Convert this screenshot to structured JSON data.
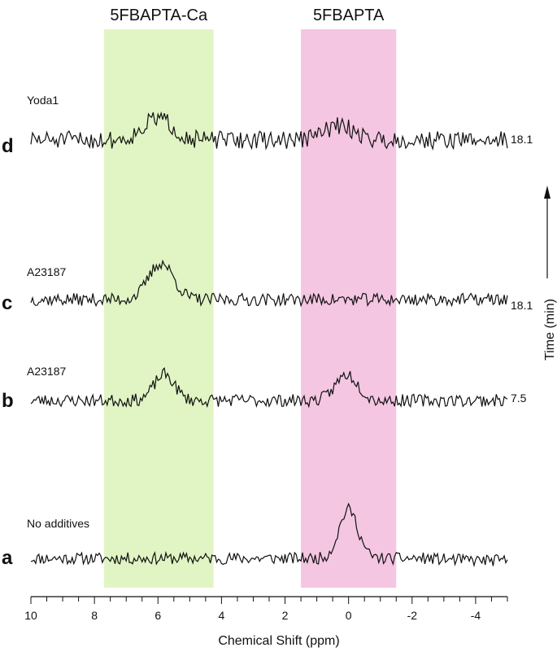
{
  "chart_data": {
    "type": "line",
    "xlabel": "Chemical Shift (ppm)",
    "xlim": [
      10,
      -5
    ],
    "x_ticks": [
      10,
      8,
      6,
      4,
      2,
      0,
      -2,
      -4
    ],
    "x_tick_labels": [
      "10",
      "8",
      "6",
      "4",
      "2",
      "0",
      "-2",
      "-4"
    ],
    "side_axis_label": "Time (min)",
    "bands": [
      {
        "label": "5FBAPTA-Ca",
        "x_range": [
          7.7,
          4.25
        ],
        "color": "#e1f5c4"
      },
      {
        "label": "5FBAPTA",
        "x_range": [
          1.5,
          -1.5
        ],
        "color": "#f4c6e2"
      }
    ],
    "series": [
      {
        "letter": "a",
        "label": "No additives",
        "time": "",
        "noise": 0.55,
        "seed": 11,
        "tail": 0.5,
        "peaks": [
          {
            "center": 0.0,
            "height": 10.0,
            "width": 0.42
          }
        ]
      },
      {
        "letter": "b",
        "label": "A23187",
        "time": "7.5",
        "noise": 0.55,
        "seed": 23,
        "tail": 0.0,
        "peaks": [
          {
            "center": 5.8,
            "height": 5.0,
            "width": 0.45
          },
          {
            "center": 0.05,
            "height": 5.0,
            "width": 0.5
          }
        ]
      },
      {
        "letter": "c",
        "label": "A23187",
        "time": "18.1",
        "noise": 0.55,
        "seed": 37,
        "tail": 0.0,
        "peaks": [
          {
            "center": 5.9,
            "height": 7.0,
            "width": 0.55
          }
        ]
      },
      {
        "letter": "d",
        "label": "Yoda1",
        "time": "18.1",
        "noise": 0.75,
        "seed": 51,
        "tail": 0.0,
        "peaks": [
          {
            "center": 6.0,
            "height": 4.0,
            "width": 0.65
          },
          {
            "center": 0.3,
            "height": 2.6,
            "width": 0.7
          }
        ]
      }
    ]
  }
}
